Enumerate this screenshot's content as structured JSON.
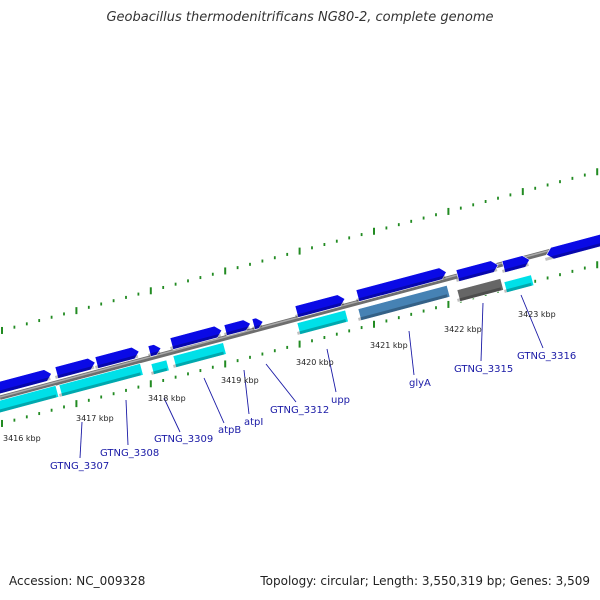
{
  "title": "Geobacillus thermodenitrificans NG80-2, complete genome",
  "footer": {
    "accession": "Accession: NC_009328",
    "topology": "Topology: circular; Length: 3,550,319 bp; Genes: 3,509"
  },
  "colors": {
    "cds_forward": "#0a0ae6",
    "cds_forward_light": "#00e0e8",
    "cds_rna": "#4682b4",
    "cds_gray": "#666666",
    "backbone": "#808080",
    "ticks": "#228b22",
    "label": "#1a1aa6"
  },
  "kbp_labels": [
    {
      "text": "3416 kbp"
    },
    {
      "text": "3417 kbp"
    },
    {
      "text": "3418 kbp"
    },
    {
      "text": "3419 kbp"
    },
    {
      "text": "3420 kbp"
    },
    {
      "text": "3421 kbp"
    },
    {
      "text": "3422 kbp"
    },
    {
      "text": "3423 kbp"
    }
  ],
  "gene_labels": [
    {
      "text": "GTNG_3307"
    },
    {
      "text": "GTNG_3308"
    },
    {
      "text": "GTNG_3309"
    },
    {
      "text": "atpB"
    },
    {
      "text": "atpI"
    },
    {
      "text": "GTNG_3312"
    },
    {
      "text": "upp"
    },
    {
      "text": "glyA"
    },
    {
      "text": "GTNG_3315"
    },
    {
      "text": "GTNG_3316"
    }
  ]
}
